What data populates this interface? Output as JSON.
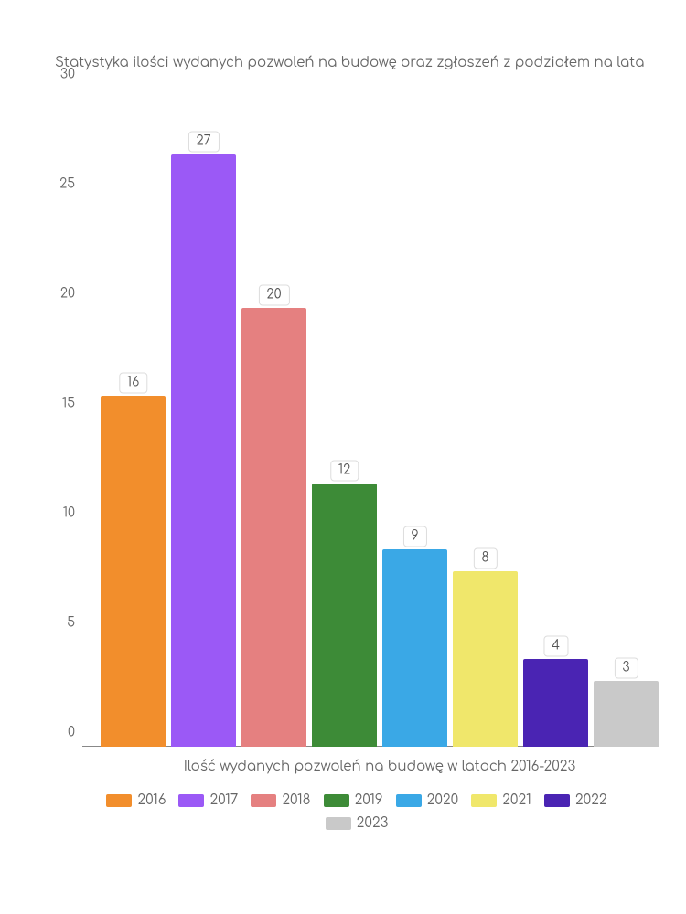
{
  "chart": {
    "type": "bar",
    "title": "Statystyka ilości wydanych pozwoleń na budowę oraz zgłoszeń z podziałem na lata",
    "xlabel": "Ilość wydanych pozwoleń na budowę w latach 2016-2023",
    "ylim": [
      0,
      30
    ],
    "yticks": [
      0,
      5,
      10,
      15,
      20,
      25,
      30
    ],
    "background_color": "#ffffff",
    "text_color": "#666666",
    "label_fontsize": 15,
    "tick_fontsize": 14,
    "value_label_bg": "#ffffff",
    "value_label_border": "#dddddd",
    "series": [
      {
        "year": "2016",
        "value": 16,
        "color": "#f28e2c"
      },
      {
        "year": "2017",
        "value": 27,
        "color": "#9b59f6"
      },
      {
        "year": "2018",
        "value": 20,
        "color": "#e58080"
      },
      {
        "year": "2019",
        "value": 12,
        "color": "#3d8b37"
      },
      {
        "year": "2020",
        "value": 9,
        "color": "#3aa8e6"
      },
      {
        "year": "2021",
        "value": 8,
        "color": "#f0e76b"
      },
      {
        "year": "2022",
        "value": 4,
        "color": "#4a24b3"
      },
      {
        "year": "2023",
        "value": 3,
        "color": "#c9c9c9"
      }
    ]
  }
}
